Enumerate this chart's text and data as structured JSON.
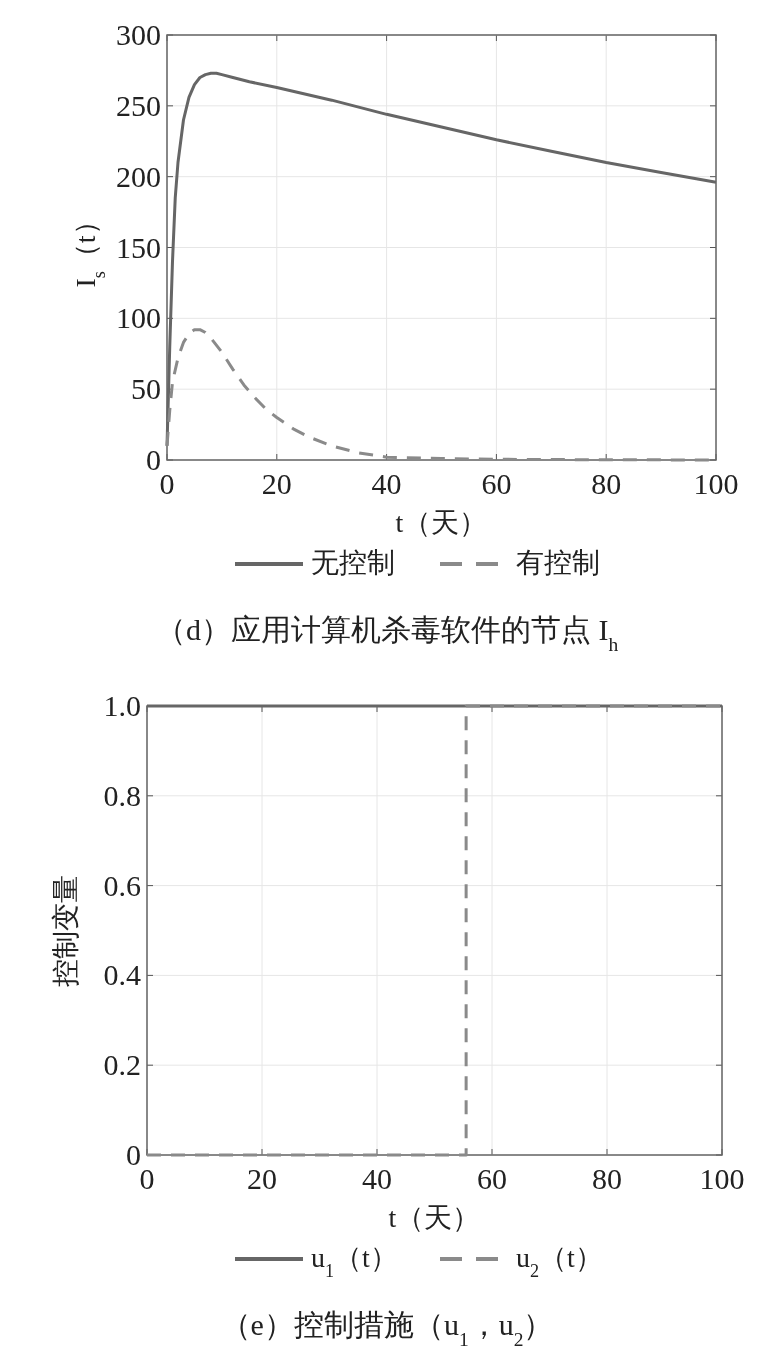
{
  "chart_data": [
    {
      "type": "line",
      "xlabel": "t（天）",
      "ylabel": "I$_{s}$（t）",
      "xlim": [
        0,
        100
      ],
      "ylim": [
        0,
        300
      ],
      "xticks": [
        0,
        20,
        40,
        60,
        80,
        100
      ],
      "yticks": [
        0,
        50,
        100,
        150,
        200,
        250,
        300
      ],
      "grid": true,
      "legend": "bottom",
      "annotations": [
        "（d）应用计算机杀毒软件的节点 I$_{h}$"
      ],
      "series": [
        {
          "name": "无控制",
          "color": "#666666",
          "line_style": "solid",
          "x": [
            0,
            0.5,
            1,
            1.5,
            2,
            3,
            4,
            5,
            6,
            7,
            8,
            9,
            10,
            12,
            15,
            20,
            30,
            40,
            50,
            60,
            70,
            80,
            90,
            100
          ],
          "values": [
            10,
            80,
            140,
            185,
            210,
            240,
            256,
            265,
            270,
            272,
            273,
            273,
            272,
            270,
            267,
            263,
            254,
            244,
            235,
            226,
            218,
            210,
            203,
            196
          ]
        },
        {
          "name": "有控制",
          "color": "#8a8a8a",
          "line_style": "dashed",
          "x": [
            0,
            0.5,
            1,
            2,
            3,
            4,
            5,
            6,
            7,
            8,
            10,
            12,
            14,
            16,
            18,
            20,
            23,
            26,
            30,
            35,
            40,
            50,
            60,
            70,
            80,
            90,
            100
          ],
          "values": [
            10,
            35,
            55,
            72,
            83,
            89,
            92,
            92,
            90,
            86,
            76,
            64,
            53,
            44,
            36,
            30,
            22,
            16,
            10,
            5,
            2,
            1,
            0.5,
            0.3,
            0.2,
            0.1,
            0
          ]
        }
      ]
    },
    {
      "type": "line",
      "xlabel": "t（天）",
      "ylabel": "控制变量",
      "xlim": [
        0,
        100
      ],
      "ylim": [
        0,
        1
      ],
      "xticks": [
        0,
        20,
        40,
        60,
        80,
        100
      ],
      "yticks": [
        0,
        0.2,
        0.4,
        0.6,
        0.8,
        {
          "value": 1,
          "label": "1.0"
        }
      ],
      "grid": true,
      "legend": "bottom",
      "annotations": [
        "（e）控制措施（u$_{1}$，u$_{2}$）"
      ],
      "series": [
        {
          "name": "u$_{1}$（t）",
          "color": "#666666",
          "line_style": "solid",
          "x": [
            0,
            100
          ],
          "values": [
            1,
            1
          ]
        },
        {
          "name": "u$_{2}$（t）",
          "color": "#8a8a8a",
          "line_style": "dashed",
          "x": [
            0,
            55.5,
            55.5,
            100
          ],
          "values": [
            0,
            0,
            1,
            1
          ]
        }
      ]
    }
  ]
}
